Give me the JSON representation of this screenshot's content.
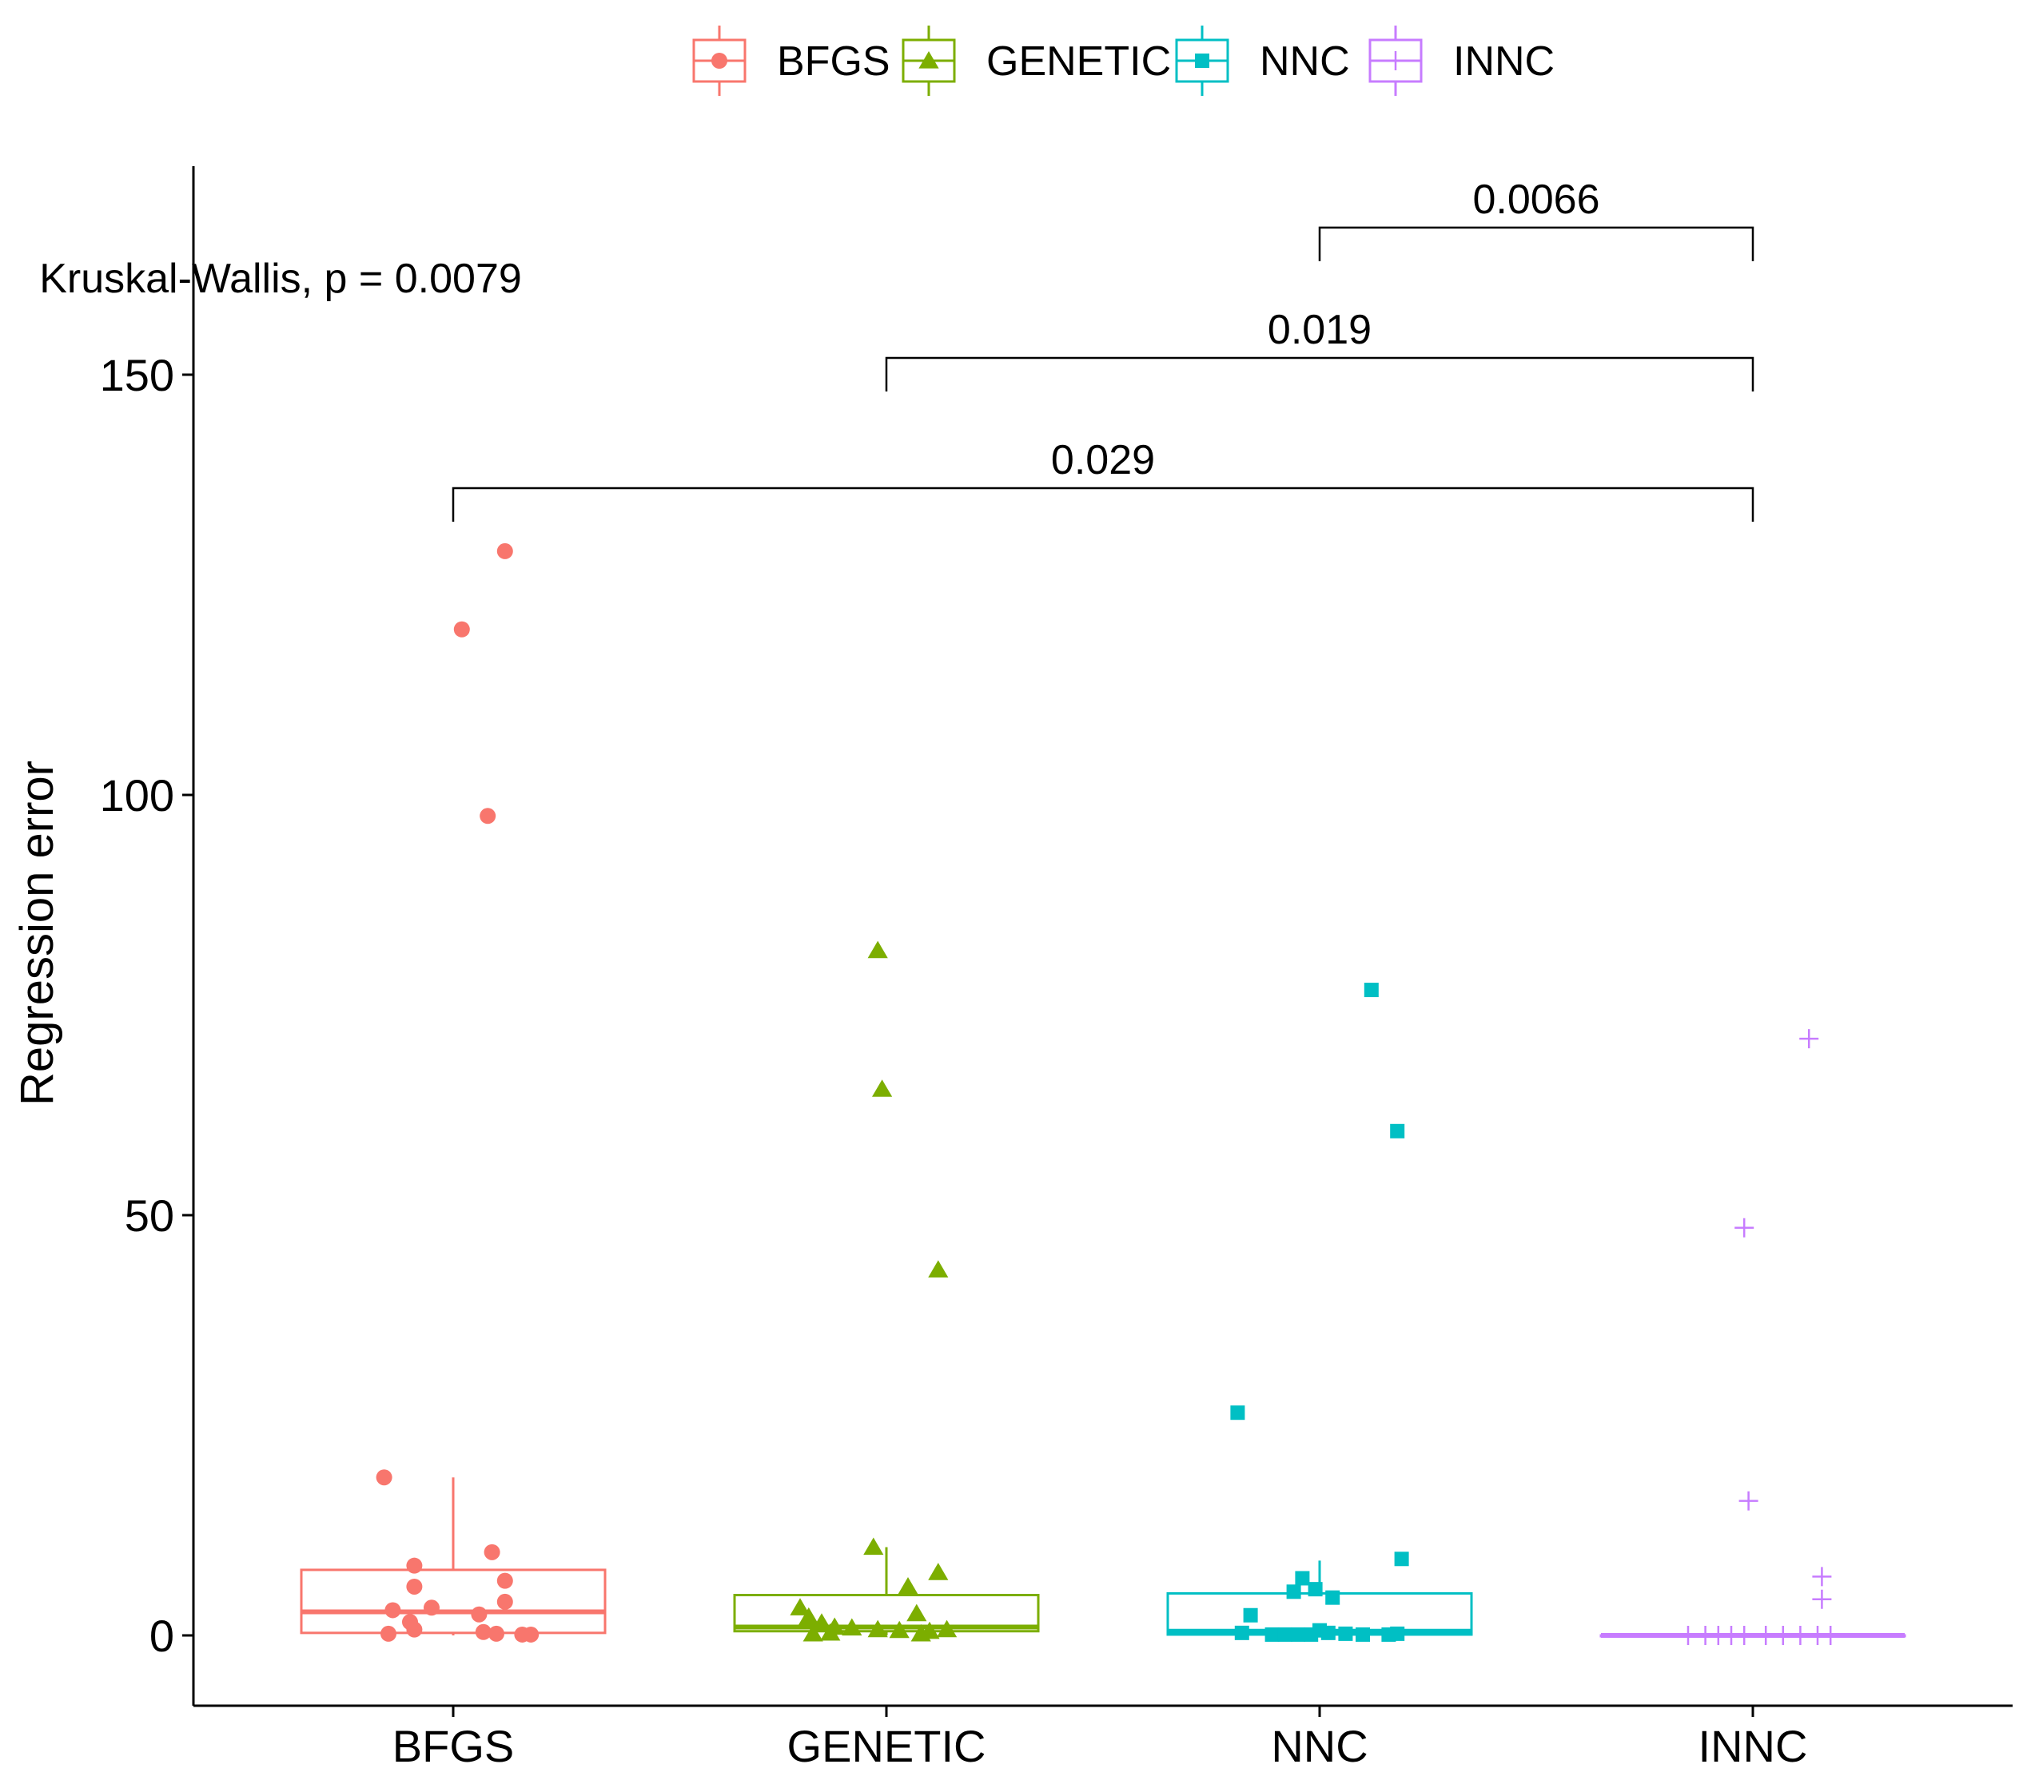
{
  "chart_data": {
    "type": "box",
    "title": "",
    "xlabel": "",
    "ylabel": "Regression error",
    "ylim": [
      -8,
      172
    ],
    "yticks": [
      0,
      50,
      100,
      150
    ],
    "yticklabels": [
      "0",
      "50",
      "100",
      "150"
    ],
    "categories": [
      "BFGS",
      "GENETIC",
      "NNC",
      "INNC"
    ],
    "legend": {
      "position": "top",
      "entries": [
        {
          "label": "BFGS",
          "color": "#F8766D",
          "marker": "circle"
        },
        {
          "label": "GENETIC",
          "color": "#7CAE00",
          "marker": "triangle"
        },
        {
          "label": "NNC",
          "color": "#00BFC4",
          "marker": "square"
        },
        {
          "label": "INNC",
          "color": "#C77CFF",
          "marker": "plus"
        }
      ]
    },
    "series": [
      {
        "name": "BFGS",
        "color": "#F8766D",
        "marker": "circle",
        "box": {
          "lower_whisker": 0,
          "q1": 0.3,
          "median": 2.8,
          "q3": 7.8,
          "upper_whisker": 18.8
        },
        "points": [
          {
            "x": -0.16,
            "y": 18.8
          },
          {
            "x": 0.12,
            "y": 129.0
          },
          {
            "x": 0.02,
            "y": 119.7
          },
          {
            "x": 0.08,
            "y": 97.5
          },
          {
            "x": -0.09,
            "y": 8.3
          },
          {
            "x": 0.09,
            "y": 9.9
          },
          {
            "x": -0.09,
            "y": 5.8
          },
          {
            "x": 0.12,
            "y": 6.5
          },
          {
            "x": -0.05,
            "y": 3.3
          },
          {
            "x": 0.12,
            "y": 4.0
          },
          {
            "x": -0.14,
            "y": 3.0
          },
          {
            "x": 0.06,
            "y": 2.5
          },
          {
            "x": -0.1,
            "y": 1.6
          },
          {
            "x": -0.09,
            "y": 0.7
          },
          {
            "x": -0.15,
            "y": 0.2
          },
          {
            "x": 0.07,
            "y": 0.4
          },
          {
            "x": 0.1,
            "y": 0.2
          },
          {
            "x": 0.16,
            "y": 0.1
          },
          {
            "x": 0.18,
            "y": 0.1
          }
        ]
      },
      {
        "name": "GENETIC",
        "color": "#7CAE00",
        "marker": "triangle",
        "box": {
          "lower_whisker": 0,
          "q1": 0.5,
          "median": 1.0,
          "q3": 4.8,
          "upper_whisker": 10.5
        },
        "points": [
          {
            "x": -0.02,
            "y": 81.5
          },
          {
            "x": -0.01,
            "y": 65.0
          },
          {
            "x": 0.12,
            "y": 43.5
          },
          {
            "x": -0.03,
            "y": 10.5
          },
          {
            "x": 0.12,
            "y": 7.5
          },
          {
            "x": 0.05,
            "y": 5.8
          },
          {
            "x": -0.2,
            "y": 3.3
          },
          {
            "x": 0.07,
            "y": 2.6
          },
          {
            "x": -0.18,
            "y": 2.2
          },
          {
            "x": -0.15,
            "y": 1.5
          },
          {
            "x": -0.12,
            "y": 1.0
          },
          {
            "x": -0.08,
            "y": 0.9
          },
          {
            "x": -0.02,
            "y": 0.7
          },
          {
            "x": 0.03,
            "y": 0.6
          },
          {
            "x": 0.1,
            "y": 0.5
          },
          {
            "x": 0.14,
            "y": 0.7
          },
          {
            "x": -0.17,
            "y": 0.2
          },
          {
            "x": -0.13,
            "y": 0.3
          },
          {
            "x": 0.08,
            "y": 0.2
          }
        ]
      },
      {
        "name": "NNC",
        "color": "#00BFC4",
        "marker": "square",
        "box": {
          "lower_whisker": 0,
          "q1": 0.1,
          "median": 0.5,
          "q3": 5.0,
          "upper_whisker": 8.9
        },
        "points": [
          {
            "x": 0.12,
            "y": 76.8
          },
          {
            "x": 0.18,
            "y": 60.0
          },
          {
            "x": -0.19,
            "y": 26.5
          },
          {
            "x": 0.19,
            "y": 9.1
          },
          {
            "x": -0.04,
            "y": 6.8
          },
          {
            "x": -0.06,
            "y": 5.2
          },
          {
            "x": -0.01,
            "y": 5.5
          },
          {
            "x": 0.03,
            "y": 4.5
          },
          {
            "x": -0.16,
            "y": 2.4
          },
          {
            "x": -0.18,
            "y": 0.3
          },
          {
            "x": -0.11,
            "y": 0.1
          },
          {
            "x": -0.08,
            "y": 0.1
          },
          {
            "x": -0.05,
            "y": 0.1
          },
          {
            "x": -0.02,
            "y": 0.1
          },
          {
            "x": 0.0,
            "y": 0.6
          },
          {
            "x": 0.02,
            "y": 0.3
          },
          {
            "x": 0.06,
            "y": 0.2
          },
          {
            "x": 0.1,
            "y": 0.1
          },
          {
            "x": 0.16,
            "y": 0.1
          },
          {
            "x": 0.18,
            "y": 0.2
          }
        ]
      },
      {
        "name": "INNC",
        "color": "#C77CFF",
        "marker": "plus",
        "box": {
          "lower_whisker": 0,
          "q1": 0,
          "median": 0,
          "q3": 0,
          "upper_whisker": 0
        },
        "points": [
          {
            "x": 0.13,
            "y": 71.0
          },
          {
            "x": -0.02,
            "y": 48.5
          },
          {
            "x": -0.01,
            "y": 16.0
          },
          {
            "x": 0.16,
            "y": 7.0
          },
          {
            "x": 0.16,
            "y": 4.3
          },
          {
            "x": -0.15,
            "y": 0
          },
          {
            "x": -0.11,
            "y": 0
          },
          {
            "x": -0.08,
            "y": 0
          },
          {
            "x": -0.05,
            "y": 0
          },
          {
            "x": -0.02,
            "y": 0
          },
          {
            "x": 0.03,
            "y": 0
          },
          {
            "x": 0.07,
            "y": 0
          },
          {
            "x": 0.11,
            "y": 0
          },
          {
            "x": 0.15,
            "y": 0
          },
          {
            "x": 0.18,
            "y": 0
          }
        ]
      }
    ],
    "annotations": {
      "global_test": {
        "text": "Kruskal-Wallis, p = 0.0079",
        "x": 0.6,
        "y": 161.5
      },
      "comparisons": [
        {
          "group1": "NNC",
          "group2": "INNC",
          "label": "0.0066",
          "y": 167.5
        },
        {
          "group1": "GENETIC",
          "group2": "INNC",
          "label": "0.019",
          "y": 152.0
        },
        {
          "group1": "BFGS",
          "group2": "INNC",
          "label": "0.029",
          "y": 136.5
        }
      ]
    }
  }
}
